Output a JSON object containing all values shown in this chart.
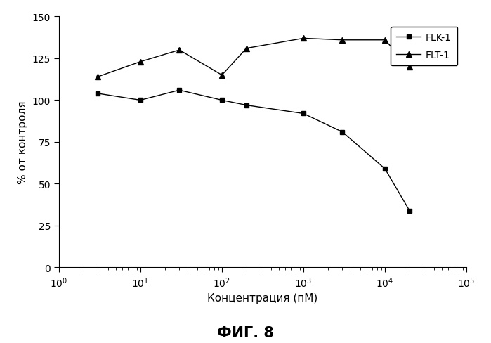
{
  "FLK1_x": [
    3,
    10,
    30,
    100,
    200,
    1000,
    3000,
    10000,
    20000
  ],
  "FLK1_y": [
    104,
    100,
    106,
    100,
    97,
    92,
    81,
    59,
    34
  ],
  "FLT1_x": [
    3,
    10,
    30,
    100,
    200,
    1000,
    3000,
    10000,
    20000
  ],
  "FLT1_y": [
    114,
    123,
    130,
    115,
    131,
    137,
    136,
    136,
    120
  ],
  "xlabel": "Концентрация (пМ)",
  "ylabel": "% от контроля",
  "title": "ФИГ. 8",
  "ylim": [
    0,
    150
  ],
  "yticks": [
    0,
    25,
    50,
    75,
    100,
    125,
    150
  ],
  "xlim_log": [
    1,
    100000
  ],
  "line_color": "#000000",
  "marker_FLK1": "s",
  "marker_FLT1": "^",
  "legend_FLK1": "FLK-1",
  "legend_FLT1": "FLT-1",
  "bg_color": "#ffffff",
  "fontsize_title": 15,
  "fontsize_label": 11,
  "fontsize_legend": 10,
  "fontsize_ticks": 10
}
